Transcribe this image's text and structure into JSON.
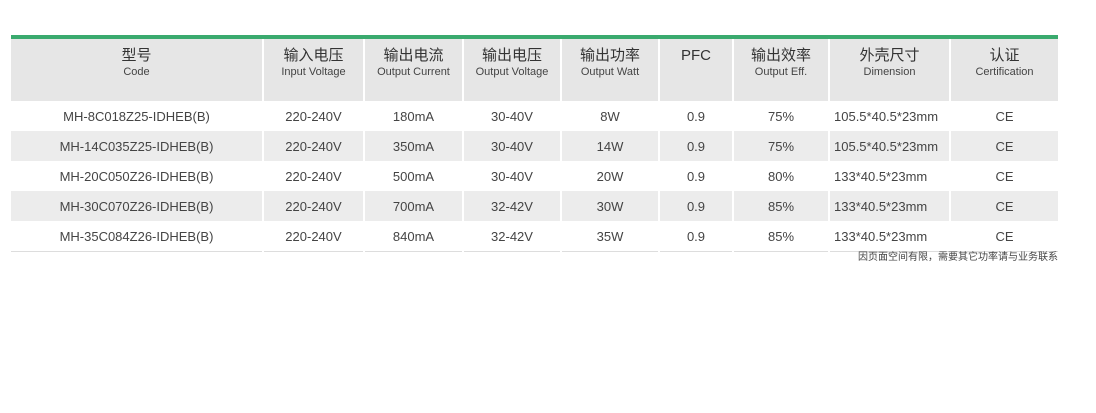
{
  "accent_color": "#3aaa6e",
  "columns": [
    {
      "zh": "型号",
      "en": "Code"
    },
    {
      "zh": "输入电压",
      "en": "Input Voltage"
    },
    {
      "zh": "输出电流",
      "en": "Output Current"
    },
    {
      "zh": "输出电压",
      "en": "Output Voltage"
    },
    {
      "zh": "输出功率",
      "en": "Output Watt"
    },
    {
      "zh": "PFC",
      "en": ""
    },
    {
      "zh": "输出效率",
      "en": "Output Eff."
    },
    {
      "zh": "外壳尺寸",
      "en": "Dimension"
    },
    {
      "zh": "认证",
      "en": "Certification"
    }
  ],
  "rows": [
    [
      "MH-8C018Z25-IDHEB(B)",
      "220-240V",
      "180mA",
      "30-40V",
      "8W",
      "0.9",
      "75%",
      "105.5*40.5*23mm",
      "CE"
    ],
    [
      "MH-14C035Z25-IDHEB(B)",
      "220-240V",
      "350mA",
      "30-40V",
      "14W",
      "0.9",
      "75%",
      "105.5*40.5*23mm",
      "CE"
    ],
    [
      "MH-20C050Z26-IDHEB(B)",
      "220-240V",
      "500mA",
      "30-40V",
      "20W",
      "0.9",
      "80%",
      "133*40.5*23mm",
      "CE"
    ],
    [
      "MH-30C070Z26-IDHEB(B)",
      "220-240V",
      "700mA",
      "32-42V",
      "30W",
      "0.9",
      "85%",
      "133*40.5*23mm",
      "CE"
    ],
    [
      "MH-35C084Z26-IDHEB(B)",
      "220-240V",
      "840mA",
      "32-42V",
      "35W",
      "0.9",
      "85%",
      "133*40.5*23mm",
      "CE"
    ]
  ],
  "note": "因页面空间有限，需要其它功率请与业务联系"
}
